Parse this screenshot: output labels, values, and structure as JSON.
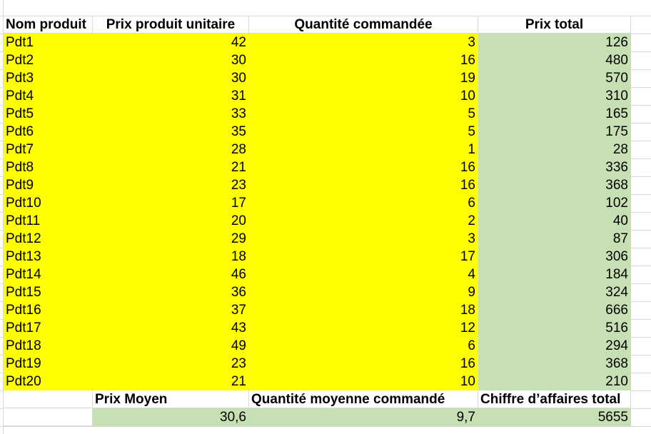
{
  "headers": {
    "product_name": "Nom produit",
    "unit_price": "Prix produit unitaire",
    "quantity": "Quantité commandée",
    "total_price": "Prix total"
  },
  "rows": [
    {
      "name": "Pdt1",
      "price": "42",
      "qty": "3",
      "total": "126"
    },
    {
      "name": "Pdt2",
      "price": "30",
      "qty": "16",
      "total": "480"
    },
    {
      "name": "Pdt3",
      "price": "30",
      "qty": "19",
      "total": "570"
    },
    {
      "name": "Pdt4",
      "price": "31",
      "qty": "10",
      "total": "310"
    },
    {
      "name": "Pdt5",
      "price": "33",
      "qty": "5",
      "total": "165"
    },
    {
      "name": "Pdt6",
      "price": "35",
      "qty": "5",
      "total": "175"
    },
    {
      "name": "Pdt7",
      "price": "28",
      "qty": "1",
      "total": "28"
    },
    {
      "name": "Pdt8",
      "price": "21",
      "qty": "16",
      "total": "336"
    },
    {
      "name": "Pdt9",
      "price": "23",
      "qty": "16",
      "total": "368"
    },
    {
      "name": "Pdt10",
      "price": "17",
      "qty": "6",
      "total": "102"
    },
    {
      "name": "Pdt11",
      "price": "20",
      "qty": "2",
      "total": "40"
    },
    {
      "name": "Pdt12",
      "price": "29",
      "qty": "3",
      "total": "87"
    },
    {
      "name": "Pdt13",
      "price": "18",
      "qty": "17",
      "total": "306"
    },
    {
      "name": "Pdt14",
      "price": "46",
      "qty": "4",
      "total": "184"
    },
    {
      "name": "Pdt15",
      "price": "36",
      "qty": "9",
      "total": "324"
    },
    {
      "name": "Pdt16",
      "price": "37",
      "qty": "18",
      "total": "666"
    },
    {
      "name": "Pdt17",
      "price": "43",
      "qty": "12",
      "total": "516"
    },
    {
      "name": "Pdt18",
      "price": "49",
      "qty": "6",
      "total": "294"
    },
    {
      "name": "Pdt19",
      "price": "23",
      "qty": "16",
      "total": "368"
    },
    {
      "name": "Pdt20",
      "price": "21",
      "qty": "10",
      "total": "210"
    }
  ],
  "summary": {
    "avg_price_label": "Prix Moyen",
    "avg_qty_label": "Quantité moyenne commandé",
    "revenue_label": "Chiffre d’affaires total",
    "avg_price_value": "30,6",
    "avg_qty_value": "9,7",
    "revenue_value": "5655"
  },
  "colors": {
    "input_fill": "#ffff00",
    "computed_fill": "#c6e0b4",
    "gridline": "#d9d9d9"
  }
}
